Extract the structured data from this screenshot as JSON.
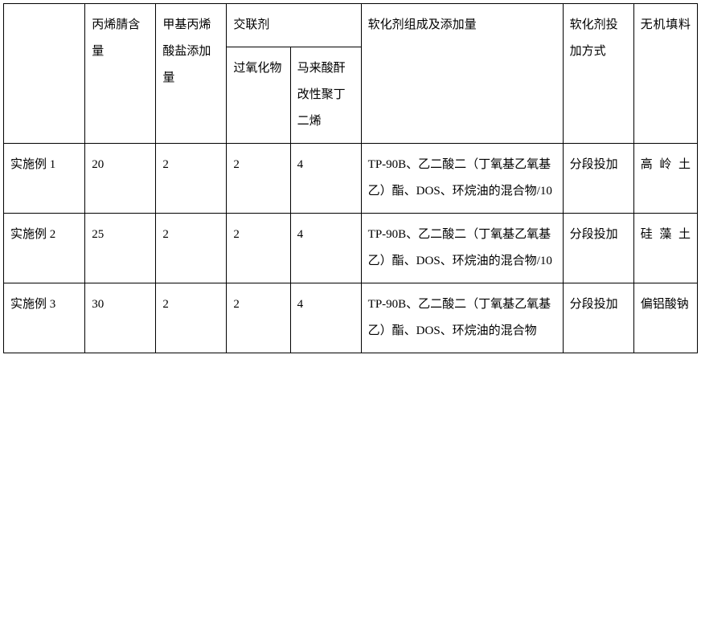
{
  "headers": {
    "row_label": "",
    "c1": "丙烯腈含量",
    "c2": "甲基丙烯酸盐添加量",
    "c3": "交联剂",
    "c3a": "过氧化物",
    "c3b": "马来酸酐改性聚丁二烯",
    "c4": "软化剂组成及添加量",
    "c5": "软化剂投加方式",
    "c6": "无机填料"
  },
  "rows": [
    {
      "label": "实施例 1",
      "c1": "20",
      "c2": "2",
      "c3a": "2",
      "c3b": "4",
      "c4": "TP-90B、乙二酸二（丁氧基乙氧基乙）酯、DOS、环烷油的混合物/10",
      "c5": "分段投加",
      "c6": "高岭土"
    },
    {
      "label": "实施例 2",
      "c1": "25",
      "c2": "2",
      "c3a": "2",
      "c3b": "4",
      "c4": "TP-90B、乙二酸二（丁氧基乙氧基乙）酯、DOS、环烷油的混合物/10",
      "c5": "分段投加",
      "c6": "硅藻土"
    },
    {
      "label": "实施例 3",
      "c1": "30",
      "c2": "2",
      "c3a": "2",
      "c3b": "4",
      "c4": "TP-90B、乙二酸二（丁氧基乙氧基乙）酯、DOS、环烷油的混合物",
      "c5": "分段投加",
      "c6": "偏铝酸钠"
    }
  ]
}
